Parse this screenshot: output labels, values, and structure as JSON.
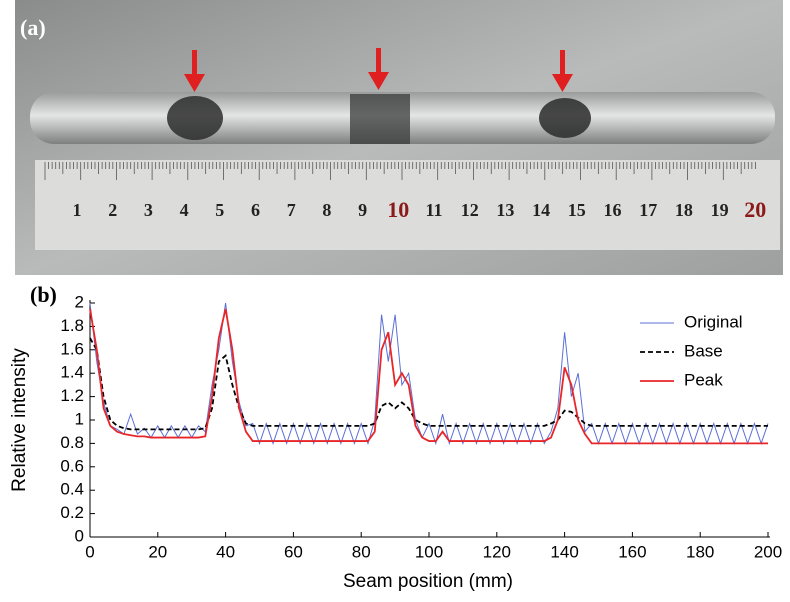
{
  "photo": {
    "label": "(a)",
    "ruler_numbers": [
      "1",
      "2",
      "3",
      "4",
      "5",
      "6",
      "7",
      "8",
      "9",
      "10",
      "11",
      "12",
      "13",
      "14",
      "15",
      "16",
      "17",
      "18",
      "19",
      "20"
    ]
  },
  "panel_label": "(b)",
  "chart_data": {
    "type": "line",
    "x_label": "Seam position (mm)",
    "y_label": "Relative intensity",
    "xlim": [
      0,
      200
    ],
    "ylim": [
      0,
      2
    ],
    "xticks": [
      0,
      20,
      40,
      60,
      80,
      100,
      120,
      140,
      160,
      180,
      200
    ],
    "yticks": [
      0,
      0.2,
      0.4,
      0.6,
      0.8,
      1,
      1.2,
      1.4,
      1.6,
      1.8,
      2
    ],
    "legend": "upper right",
    "x": [
      0,
      2,
      4,
      6,
      8,
      10,
      12,
      14,
      16,
      18,
      20,
      22,
      24,
      26,
      28,
      30,
      32,
      34,
      36,
      38,
      40,
      42,
      44,
      46,
      48,
      50,
      52,
      54,
      56,
      58,
      60,
      62,
      64,
      66,
      68,
      70,
      72,
      74,
      76,
      78,
      80,
      82,
      84,
      86,
      88,
      90,
      92,
      94,
      96,
      98,
      100,
      102,
      104,
      106,
      108,
      110,
      112,
      114,
      116,
      118,
      120,
      122,
      124,
      126,
      128,
      130,
      132,
      134,
      136,
      138,
      140,
      142,
      144,
      146,
      148,
      150,
      152,
      154,
      156,
      158,
      160,
      162,
      164,
      166,
      168,
      170,
      172,
      174,
      176,
      178,
      180,
      182,
      184,
      186,
      188,
      190,
      192,
      194,
      196,
      198,
      200
    ],
    "series": [
      {
        "name": "Original",
        "color": "#5b6fd6",
        "dash": false,
        "values": [
          2.0,
          1.5,
          1.15,
          0.95,
          0.92,
          0.88,
          1.05,
          0.88,
          0.93,
          0.85,
          0.95,
          0.85,
          0.95,
          0.85,
          0.95,
          0.85,
          0.95,
          0.9,
          1.3,
          1.6,
          2.0,
          1.5,
          1.15,
          0.95,
          0.97,
          0.8,
          0.97,
          0.8,
          0.97,
          0.8,
          0.97,
          0.8,
          0.97,
          0.8,
          0.97,
          0.8,
          0.97,
          0.8,
          0.97,
          0.8,
          0.97,
          0.8,
          1.0,
          1.9,
          1.5,
          1.9,
          1.3,
          1.4,
          1.0,
          0.85,
          0.97,
          0.8,
          1.05,
          0.8,
          0.97,
          0.8,
          0.97,
          0.8,
          0.97,
          0.8,
          0.97,
          0.8,
          0.97,
          0.8,
          0.97,
          0.8,
          0.97,
          0.8,
          0.9,
          1.1,
          1.75,
          1.2,
          1.4,
          0.9,
          0.97,
          0.8,
          0.97,
          0.8,
          0.97,
          0.8,
          0.97,
          0.8,
          0.97,
          0.8,
          0.97,
          0.8,
          0.97,
          0.8,
          0.97,
          0.8,
          0.97,
          0.8,
          0.97,
          0.8,
          0.97,
          0.8,
          0.97,
          0.8,
          0.97,
          0.8,
          0.97
        ]
      },
      {
        "name": "Base",
        "color": "#000000",
        "dash": true,
        "values": [
          1.7,
          1.6,
          1.2,
          1.0,
          0.95,
          0.93,
          0.92,
          0.92,
          0.92,
          0.92,
          0.92,
          0.92,
          0.92,
          0.92,
          0.92,
          0.92,
          0.92,
          0.93,
          1.1,
          1.5,
          1.55,
          1.3,
          1.1,
          0.97,
          0.95,
          0.95,
          0.95,
          0.95,
          0.95,
          0.95,
          0.95,
          0.95,
          0.95,
          0.95,
          0.95,
          0.95,
          0.95,
          0.95,
          0.95,
          0.95,
          0.95,
          0.95,
          0.97,
          1.12,
          1.15,
          1.1,
          1.15,
          1.1,
          1.0,
          0.97,
          0.95,
          0.95,
          0.95,
          0.95,
          0.95,
          0.95,
          0.95,
          0.95,
          0.95,
          0.95,
          0.95,
          0.95,
          0.95,
          0.95,
          0.95,
          0.95,
          0.95,
          0.95,
          0.97,
          1.0,
          1.08,
          1.07,
          1.02,
          0.97,
          0.95,
          0.95,
          0.95,
          0.95,
          0.95,
          0.95,
          0.95,
          0.95,
          0.95,
          0.95,
          0.95,
          0.95,
          0.95,
          0.95,
          0.95,
          0.95,
          0.95,
          0.95,
          0.95,
          0.95,
          0.95,
          0.95,
          0.95,
          0.95,
          0.95,
          0.95,
          0.95
        ]
      },
      {
        "name": "Peak",
        "color": "#e8262a",
        "dash": false,
        "values": [
          1.95,
          1.6,
          1.1,
          0.95,
          0.9,
          0.88,
          0.87,
          0.86,
          0.86,
          0.85,
          0.85,
          0.85,
          0.85,
          0.85,
          0.85,
          0.85,
          0.85,
          0.86,
          1.2,
          1.7,
          1.95,
          1.6,
          1.1,
          0.9,
          0.82,
          0.82,
          0.82,
          0.82,
          0.82,
          0.82,
          0.82,
          0.82,
          0.82,
          0.82,
          0.82,
          0.82,
          0.82,
          0.82,
          0.82,
          0.82,
          0.82,
          0.82,
          0.9,
          1.6,
          1.75,
          1.3,
          1.4,
          1.3,
          0.95,
          0.85,
          0.82,
          0.82,
          0.9,
          0.82,
          0.82,
          0.82,
          0.82,
          0.82,
          0.82,
          0.82,
          0.82,
          0.82,
          0.82,
          0.82,
          0.82,
          0.82,
          0.82,
          0.82,
          0.85,
          1.0,
          1.45,
          1.3,
          1.0,
          0.88,
          0.8,
          0.8,
          0.8,
          0.8,
          0.8,
          0.8,
          0.8,
          0.8,
          0.8,
          0.8,
          0.8,
          0.8,
          0.8,
          0.8,
          0.8,
          0.8,
          0.8,
          0.8,
          0.8,
          0.8,
          0.8,
          0.8,
          0.8,
          0.8,
          0.8,
          0.8,
          0.8
        ]
      }
    ]
  }
}
